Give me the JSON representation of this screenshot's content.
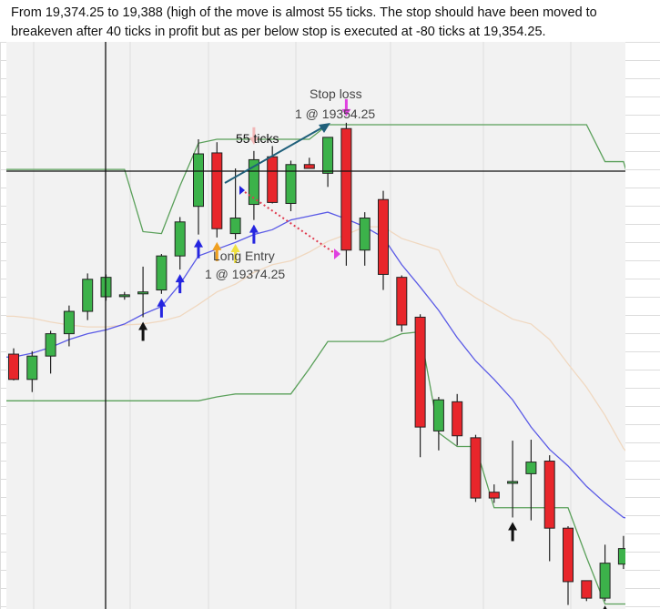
{
  "note": {
    "line1": "From 19,374.25 to 19,388 (high of the move is almost 55 ticks. The stop should have been moved to",
    "line2": "breakeven after 40 ticks in profit but as per below stop is executed at -80 ticks at 19,354.25."
  },
  "annotations": {
    "stop_loss_title": "Stop loss",
    "stop_loss_detail": "1 @ 19354.25",
    "ticks_label": "55 ticks",
    "entry_title": "Long Entry",
    "entry_detail": "1 @ 19374.25"
  },
  "colors": {
    "bull": "#3cb24a",
    "bear": "#e8262b",
    "donchian": "#5aa05a",
    "ema": "#5a5ae6",
    "sma": "#f0d8c0",
    "trend_arrow": "#1f5f7a",
    "stop_line": "#e03c50",
    "background": "#f2f2f2"
  },
  "chart_data": {
    "type": "candlestick",
    "ylim": [
      19338,
      19394
    ],
    "entry_price": 19374.25,
    "stop_price": 19354.25,
    "candles": [
      {
        "o": 19364.2,
        "h": 19364.8,
        "l": 19361.5,
        "c": 19361.6
      },
      {
        "o": 19361.6,
        "h": 19364.5,
        "l": 19360.3,
        "c": 19364.0
      },
      {
        "o": 19364.0,
        "h": 19366.6,
        "l": 19362.2,
        "c": 19366.3
      },
      {
        "o": 19366.3,
        "h": 19369.2,
        "l": 19365.0,
        "c": 19368.6
      },
      {
        "o": 19368.6,
        "h": 19372.5,
        "l": 19367.7,
        "c": 19371.9
      },
      {
        "o": 19370.1,
        "h": 19372.4,
        "l": 19369.7,
        "c": 19372.1
      },
      {
        "o": 19370.3,
        "h": 19370.6,
        "l": 19369.8,
        "c": 19370.3
      },
      {
        "o": 19370.4,
        "h": 19373.2,
        "l": 19368.0,
        "c": 19370.6
      },
      {
        "o": 19370.8,
        "h": 19374.5,
        "l": 19370.4,
        "c": 19374.3
      },
      {
        "o": 19374.3,
        "h": 19378.3,
        "l": 19372.9,
        "c": 19377.8
      },
      {
        "o": 19379.4,
        "h": 19386.3,
        "l": 19376.5,
        "c": 19384.8
      },
      {
        "o": 19384.9,
        "h": 19386.0,
        "l": 19376.2,
        "c": 19377.1
      },
      {
        "o": 19376.6,
        "h": 19383.3,
        "l": 19376.0,
        "c": 19378.2
      },
      {
        "o": 19379.6,
        "h": 19385.1,
        "l": 19378.0,
        "c": 19384.2
      },
      {
        "o": 19384.5,
        "h": 19385.6,
        "l": 19379.7,
        "c": 19379.8
      },
      {
        "o": 19379.7,
        "h": 19384.1,
        "l": 19378.9,
        "c": 19383.7
      },
      {
        "o": 19383.7,
        "h": 19384.4,
        "l": 19383.3,
        "c": 19383.3
      },
      {
        "o": 19382.8,
        "h": 19386.5,
        "l": 19381.4,
        "c": 19386.5
      },
      {
        "o": 19387.4,
        "h": 19388.0,
        "l": 19373.3,
        "c": 19374.9
      },
      {
        "o": 19374.9,
        "h": 19378.8,
        "l": 19373.3,
        "c": 19378.2
      },
      {
        "o": 19380.1,
        "h": 19381.0,
        "l": 19370.8,
        "c": 19372.4
      },
      {
        "o": 19372.1,
        "h": 19372.3,
        "l": 19366.5,
        "c": 19367.2
      },
      {
        "o": 19368.0,
        "h": 19368.3,
        "l": 19353.6,
        "c": 19356.7
      },
      {
        "o": 19356.3,
        "h": 19359.8,
        "l": 19354.3,
        "c": 19359.5
      },
      {
        "o": 19359.3,
        "h": 19360.1,
        "l": 19354.8,
        "c": 19355.8
      },
      {
        "o": 19355.6,
        "h": 19355.9,
        "l": 19349.0,
        "c": 19349.4
      },
      {
        "o": 19350.0,
        "h": 19350.8,
        "l": 19348.9,
        "c": 19349.4
      },
      {
        "o": 19351.0,
        "h": 19355.3,
        "l": 19347.4,
        "c": 19351.1
      },
      {
        "o": 19351.9,
        "h": 19355.4,
        "l": 19347.1,
        "c": 19353.1
      },
      {
        "o": 19353.2,
        "h": 19353.8,
        "l": 19342.9,
        "c": 19346.3
      },
      {
        "o": 19346.3,
        "h": 19346.5,
        "l": 19338.4,
        "c": 19340.8
      },
      {
        "o": 19340.9,
        "h": 19340.9,
        "l": 19338.8,
        "c": 19339.1
      },
      {
        "o": 19339.1,
        "h": 19344.6,
        "l": 19338.8,
        "c": 19342.7
      },
      {
        "o": 19342.6,
        "h": 19345.5,
        "l": 19342.1,
        "c": 19344.2
      },
      {
        "o": 19344.2,
        "h": 19346.5,
        "l": 19343.6,
        "c": 19345.7
      }
    ],
    "donchian_upper": [
      19383.2,
      19383.2,
      19383.2,
      19383.2,
      19383.2,
      19383.2,
      19383.2,
      19376.8,
      19376.6,
      19381.5,
      19385.9,
      19386.3,
      19386.3,
      19386.3,
      19386.3,
      19386.3,
      19386.3,
      19387.8,
      19387.8,
      19387.8,
      19387.8,
      19387.8,
      19387.8,
      19387.8,
      19387.8,
      19387.8,
      19387.8,
      19387.8,
      19387.8,
      19387.8,
      19387.8,
      19387.8,
      19384.0,
      19384.0,
      19377.6
    ],
    "donchian_lower": [
      19359.4,
      19359.4,
      19359.4,
      19359.4,
      19359.4,
      19359.4,
      19359.4,
      19359.4,
      19359.4,
      19359.4,
      19359.4,
      19359.8,
      19360.1,
      19360.1,
      19360.1,
      19360.1,
      19362.7,
      19365.5,
      19365.5,
      19365.5,
      19365.5,
      19366.3,
      19366.5,
      19356.1,
      19354.7,
      19354.7,
      19348.4,
      19348.4,
      19348.4,
      19348.4,
      19348.4,
      19343.3,
      19338.5,
      19338.5,
      19338.5
    ],
    "ema": [
      19363.9,
      19364.3,
      19364.9,
      19365.7,
      19366.3,
      19366.7,
      19367.3,
      19368.3,
      19369.1,
      19371.4,
      19374.3,
      19375.0,
      19375.7,
      19376.5,
      19377.0,
      19378.0,
      19378.4,
      19378.8,
      19378.1,
      19377.3,
      19376.2,
      19373.4,
      19371.1,
      19368.7,
      19365.9,
      19363.5,
      19361.6,
      19359.5,
      19356.7,
      19354.4,
      19352.7,
      19350.6,
      19348.9,
      19347.4,
      19347.1
    ],
    "sma": [
      19368.1,
      19367.9,
      19367.5,
      19367.2,
      19367.0,
      19367.0,
      19367.2,
      19367.3,
      19367.6,
      19368.1,
      19369.3,
      19370.6,
      19371.4,
      19372.6,
      19373.4,
      19373.8,
      19374.7,
      19375.8,
      19376.5,
      19377.3,
      19377.3,
      19376.1,
      19375.5,
      19374.9,
      19371.3,
      19370.0,
      19368.9,
      19367.8,
      19367.3,
      19365.7,
      19363.2,
      19360.8,
      19357.9,
      19354.5,
      19352.5
    ],
    "markers": {
      "black_up": [
        7,
        27,
        32
      ],
      "blue_up": [
        8,
        9,
        10,
        13
      ],
      "orange_up": [
        11
      ],
      "yellow_up": [
        12
      ],
      "pink_down": [
        13
      ],
      "magenta_down": [
        18
      ]
    }
  }
}
